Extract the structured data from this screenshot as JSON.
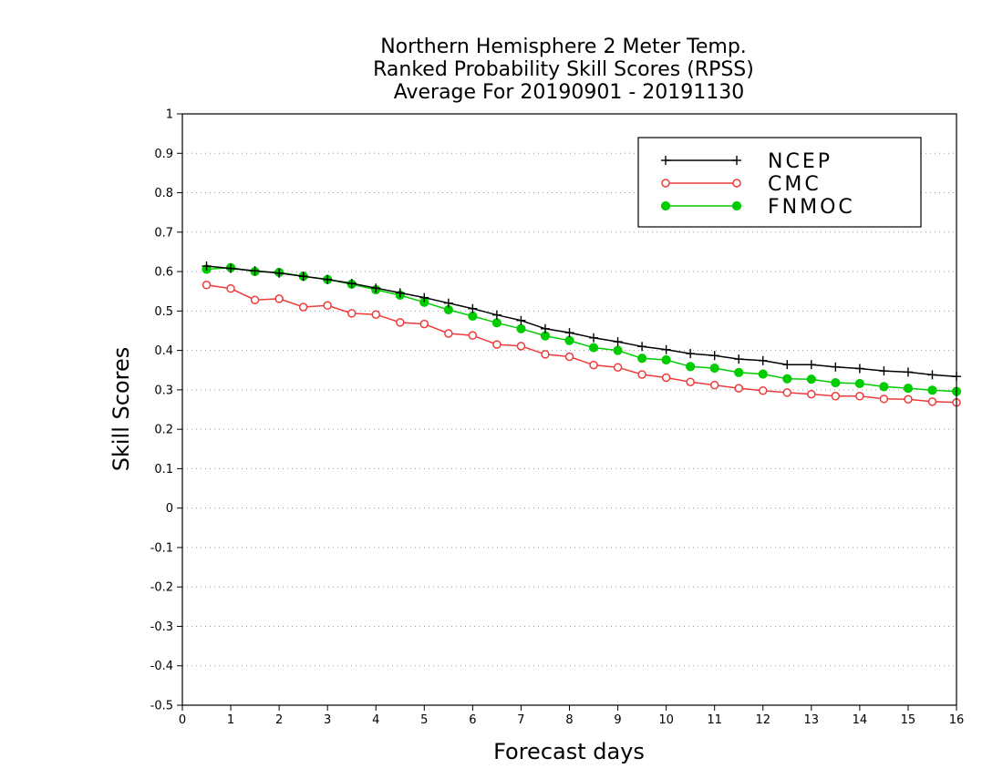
{
  "chart_data": {
    "type": "line",
    "title_lines": [
      "Northern Hemisphere 2 Meter Temp.",
      "Ranked Probability Skill Scores (RPSS)",
      "Average For 20190901 - 20191130"
    ],
    "xlabel": "Forecast days",
    "ylabel": "Skill Scores",
    "xlim": [
      0,
      16
    ],
    "ylim": [
      -0.5,
      1
    ],
    "x_ticks": [
      "0",
      "1",
      "2",
      "3",
      "4",
      "5",
      "6",
      "7",
      "8",
      "9",
      "10",
      "11",
      "12",
      "13",
      "14",
      "15",
      "16"
    ],
    "y_ticks": [
      "1",
      "0.9",
      "0.8",
      "0.7",
      "0.6",
      "0.5",
      "0.4",
      "0.3",
      "0.2",
      "0.1",
      "0",
      "-0.1",
      "-0.2",
      "-0.3",
      "-0.4",
      "-0.5"
    ],
    "grid": true,
    "legend_position": "top-right",
    "x": [
      0.5,
      1,
      1.5,
      2,
      2.5,
      3,
      3.5,
      4,
      4.5,
      5,
      5.5,
      6,
      6.5,
      7,
      7.5,
      8,
      8.5,
      9,
      9.5,
      10,
      10.5,
      11,
      11.5,
      12,
      12.5,
      13,
      13.5,
      14,
      14.5,
      15,
      15.5,
      16
    ],
    "series": [
      {
        "name": "NCEP",
        "color": "#000000",
        "marker": "plus",
        "values": [
          0.614,
          0.608,
          0.602,
          0.596,
          0.588,
          0.58,
          0.57,
          0.558,
          0.546,
          0.534,
          0.52,
          0.506,
          0.49,
          0.476,
          0.455,
          0.445,
          0.432,
          0.422,
          0.41,
          0.402,
          0.392,
          0.387,
          0.378,
          0.374,
          0.364,
          0.364,
          0.358,
          0.354,
          0.348,
          0.345,
          0.338,
          0.334
        ]
      },
      {
        "name": "CMC",
        "color": "#ee3b3b",
        "marker": "open-circle",
        "values": [
          0.566,
          0.557,
          0.528,
          0.531,
          0.51,
          0.514,
          0.494,
          0.491,
          0.471,
          0.467,
          0.443,
          0.438,
          0.415,
          0.411,
          0.39,
          0.384,
          0.363,
          0.357,
          0.339,
          0.331,
          0.32,
          0.312,
          0.304,
          0.298,
          0.293,
          0.289,
          0.284,
          0.284,
          0.277,
          0.276,
          0.27,
          0.268
        ]
      },
      {
        "name": "FNMOC",
        "color": "#00cc00",
        "marker": "filled-circle",
        "values": [
          0.606,
          0.61,
          0.6,
          0.598,
          0.588,
          0.58,
          0.568,
          0.554,
          0.54,
          0.522,
          0.503,
          0.487,
          0.47,
          0.455,
          0.437,
          0.425,
          0.407,
          0.4,
          0.38,
          0.376,
          0.359,
          0.355,
          0.344,
          0.34,
          0.328,
          0.327,
          0.318,
          0.316,
          0.308,
          0.304,
          0.299,
          0.296
        ]
      }
    ]
  }
}
